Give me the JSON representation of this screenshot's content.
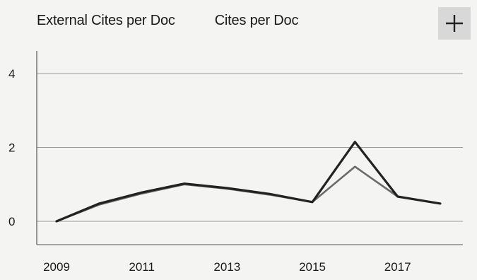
{
  "legend": {
    "item1": "External Cites per Doc",
    "item2": "Cites per Doc"
  },
  "expand_button": {
    "icon": "plus-icon"
  },
  "colors": {
    "external_cites": "#6a6a6a",
    "cites": "#222222",
    "grid": "#9a9a9a",
    "axis": "#555555"
  },
  "chart_data": {
    "type": "line",
    "x": [
      2009,
      2010,
      2011,
      2012,
      2013,
      2014,
      2015,
      2016,
      2017,
      2018
    ],
    "xticks": [
      "2009",
      "2011",
      "2013",
      "2015",
      "2017"
    ],
    "yticks": [
      "0",
      "2",
      "4"
    ],
    "ylim": [
      0,
      4.6
    ],
    "grid": true,
    "legend_position": "top",
    "series": [
      {
        "name": "External Cites per Doc",
        "values": [
          0.0,
          0.45,
          0.75,
          1.0,
          0.88,
          0.72,
          0.52,
          1.48,
          0.67,
          0.48
        ]
      },
      {
        "name": "Cites per Doc",
        "values": [
          0.0,
          0.48,
          0.78,
          1.02,
          0.9,
          0.74,
          0.52,
          2.15,
          0.67,
          0.48
        ]
      }
    ]
  }
}
